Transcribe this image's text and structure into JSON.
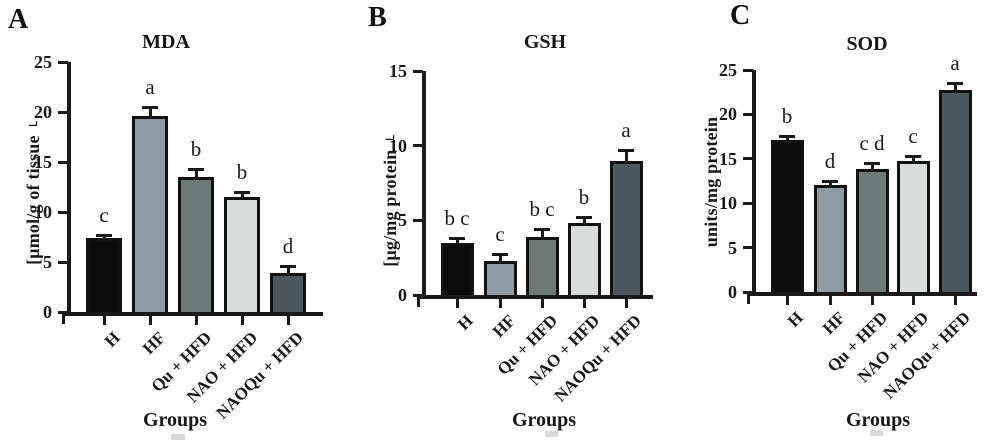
{
  "figure": {
    "background": "#ffffff",
    "description_style": "three-panel grouped bar figure with significance letters"
  },
  "style": {
    "axis_color": "#1a1a1a",
    "bar_outline_color": "#111111",
    "bar_colors": [
      "#0c0c0c",
      "#8f9aa3",
      "#6f7977",
      "#d8dcda",
      "#4e585b"
    ],
    "error_bar_color": "#1a1a1a",
    "sig_letter_color": "#1a1a1a"
  },
  "chart_data": [
    {
      "panel_letter": "A",
      "type": "bar",
      "title": "MDA",
      "ylabel": "[μmol/g of tissue⌐",
      "xlabel": "Groups",
      "categories": [
        "H",
        "HF",
        "Qu + HFD",
        "NAO + HFD",
        "NAOQu + HFD"
      ],
      "values": [
        7.4,
        19.6,
        13.5,
        11.5,
        3.9
      ],
      "errors": [
        0.4,
        1.0,
        0.9,
        0.6,
        0.8
      ],
      "sig_letters": [
        "c",
        "a",
        "b",
        "b",
        "d"
      ],
      "ylim": [
        0,
        25
      ],
      "ytick_step": 5,
      "grid": false,
      "legend": false
    },
    {
      "panel_letter": "B",
      "type": "bar",
      "title": "GSH",
      "ylabel": "[μg/mg protein⌐",
      "xlabel": "Groups",
      "categories": [
        "H",
        "HF",
        "Qu + HFD",
        "NAO + HFD",
        "NAOQu + HFD"
      ],
      "values": [
        3.5,
        2.3,
        3.9,
        4.8,
        9.0
      ],
      "errors": [
        0.4,
        0.5,
        0.6,
        0.5,
        0.8
      ],
      "sig_letters": [
        "b c",
        "c",
        "b c",
        "b",
        "a"
      ],
      "ylim": [
        0,
        15
      ],
      "ytick_step": 5,
      "grid": false,
      "legend": false
    },
    {
      "panel_letter": "C",
      "type": "bar",
      "title": "SOD",
      "ylabel": "units/mg protein",
      "xlabel": "Groups",
      "categories": [
        "H",
        "HF",
        "Qu + HFD",
        "NAO + HFD",
        "NAOQu + HFD"
      ],
      "values": [
        17.1,
        12.0,
        13.9,
        14.8,
        22.7
      ],
      "errors": [
        0.6,
        0.6,
        0.7,
        0.6,
        1.0
      ],
      "sig_letters": [
        "b",
        "d",
        "c d",
        "c",
        "a"
      ],
      "ylim": [
        0,
        25
      ],
      "ytick_step": 5,
      "grid": false,
      "legend": false
    }
  ]
}
